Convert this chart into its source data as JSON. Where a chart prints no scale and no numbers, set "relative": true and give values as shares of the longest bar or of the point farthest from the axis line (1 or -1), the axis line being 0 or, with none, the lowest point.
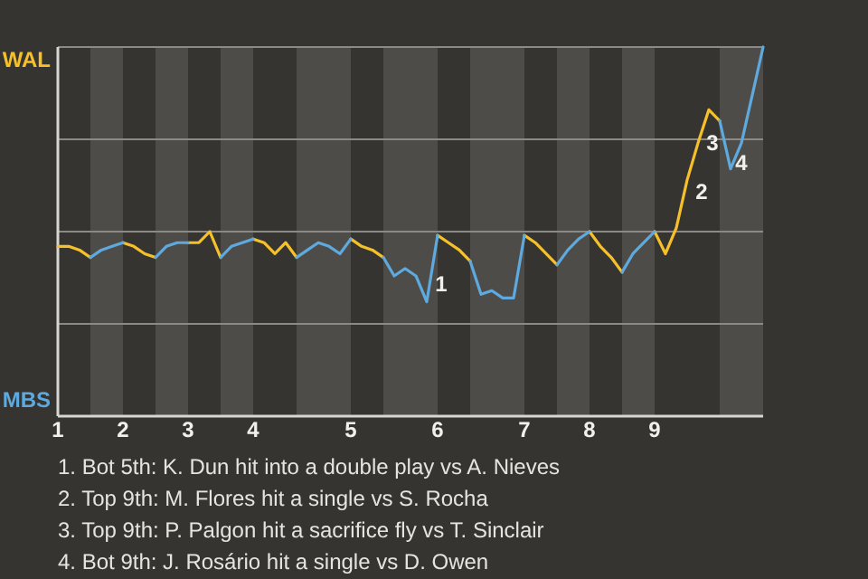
{
  "chart_data": {
    "type": "line",
    "relative": true,
    "categories": [
      "1",
      null,
      null,
      null,
      null,
      null,
      "2",
      null,
      null,
      null,
      null,
      null,
      "3",
      null,
      null,
      null,
      null,
      null,
      "4",
      null,
      null,
      null,
      null,
      null,
      null,
      null,
      null,
      "5",
      null,
      null,
      null,
      null,
      null,
      null,
      null,
      "6",
      null,
      null,
      null,
      null,
      null,
      null,
      null,
      "7",
      null,
      null,
      null,
      null,
      null,
      "8",
      null,
      null,
      null,
      null,
      null,
      "9",
      null,
      null,
      null,
      null,
      null,
      null,
      null,
      null,
      null,
      null
    ],
    "grid": "y",
    "series": [
      {
        "name": "WAL",
        "color": "#f5c02a",
        "values": [
          0.46,
          0.46,
          0.45,
          0.43,
          null,
          null,
          0.47,
          0.46,
          0.44,
          0.43,
          null,
          null,
          0.47,
          0.47,
          0.5,
          0.43,
          null,
          null,
          0.48,
          0.47,
          0.44,
          0.47,
          0.43,
          null,
          null,
          null,
          null,
          0.48,
          0.46,
          0.45,
          0.43,
          null,
          null,
          null,
          null,
          0.49,
          0.47,
          0.45,
          0.42,
          null,
          null,
          null,
          null,
          0.49,
          0.47,
          0.44,
          0.41,
          null,
          null,
          0.5,
          0.46,
          0.43,
          0.39,
          null,
          null,
          0.5,
          0.44,
          0.51,
          0.64,
          0.74,
          0.83,
          0.8,
          null,
          null,
          null,
          null
        ]
      },
      {
        "name": "MBS",
        "color": "#5ea9de",
        "values": [
          null,
          null,
          null,
          0.43,
          0.45,
          0.46,
          0.47,
          null,
          null,
          0.43,
          0.46,
          0.47,
          0.47,
          null,
          null,
          0.43,
          0.46,
          0.47,
          0.48,
          null,
          null,
          null,
          0.43,
          0.45,
          0.47,
          0.46,
          0.44,
          0.48,
          null,
          null,
          0.43,
          0.38,
          0.4,
          0.38,
          0.31,
          0.49,
          null,
          null,
          0.42,
          0.33,
          0.34,
          0.32,
          0.32,
          0.49,
          null,
          null,
          0.41,
          0.45,
          0.48,
          0.5,
          null,
          null,
          0.39,
          0.44,
          0.47,
          0.5,
          null,
          null,
          null,
          null,
          null,
          0.8,
          0.67,
          0.74,
          0.87,
          1
        ]
      }
    ],
    "annotations": [
      "1",
      "2",
      "3",
      "4",
      "1. Bot 5th: K. Dun hit into a double play vs A. Nieves",
      "2. Top 9th: M. Flores hit a single vs S. Rocha",
      "3. Top 9th: P. Palgon hit a sacrifice fly vs T. Sinclair",
      "4. Bot 9th: J. Rosário hit a single vs D. Owen"
    ]
  }
}
